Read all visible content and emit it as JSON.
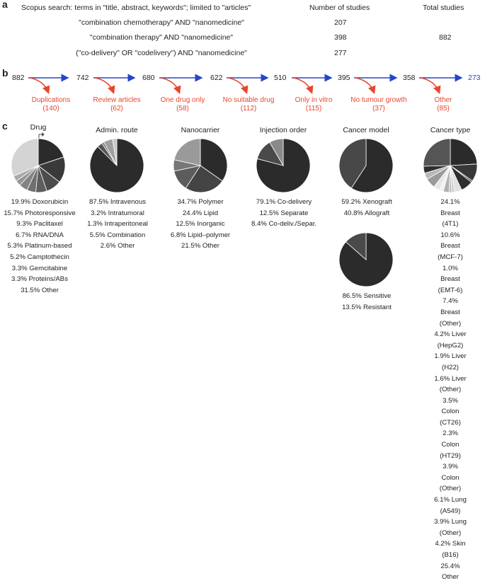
{
  "panel_a": {
    "letter": "a",
    "header_search": "Scopus search: terms in \"title, abstract, keywords\"; limited to \"articles\"",
    "header_count": "Number of studies",
    "header_total": "Total studies",
    "rows": [
      {
        "query": "\"combination chemotherapy\" AND \"nanomedicine\"",
        "count": "207"
      },
      {
        "query": "\"combination therapy\" AND \"nanomedicine\"",
        "count": "398"
      },
      {
        "query": "(\"co-delivery\" OR \"codelivery\") AND \"nanomedicine\"",
        "count": "277"
      }
    ],
    "total": "882"
  },
  "panel_b": {
    "letter": "b",
    "flow_numbers": [
      "882",
      "742",
      "680",
      "622",
      "510",
      "395",
      "358",
      "273"
    ],
    "exclusions": [
      {
        "reason": "Duplications",
        "count": "(140)"
      },
      {
        "reason": "Review articles",
        "count": "(62)"
      },
      {
        "reason": "One drug only",
        "count": "(58)"
      },
      {
        "reason": "No suitable drug",
        "count": "(112)"
      },
      {
        "reason": "Only in vitro",
        "count": "(115)"
      },
      {
        "reason": "No tumour growth",
        "count": "(37)"
      },
      {
        "reason": "Other",
        "count": "(85)"
      }
    ]
  },
  "panel_c": {
    "letter": "c"
  },
  "colors": {
    "red": "#e8452c",
    "blue": "#2446c8",
    "final_number": "#2446c8"
  },
  "chart_data": [
    {
      "type": "pie",
      "title": "Drug",
      "legend": [
        "19.9% Doxorubicin",
        "15.7% Photoresponsive",
        "9.3% Paclitaxel",
        "6.7% RNA/DNA",
        "5.3% Platinum-based",
        "5.2% Camptothecin",
        "3.3% Gemcitabine",
        "3.3% Proteins/ABs",
        "31.5% Other"
      ],
      "values": [
        19.9,
        15.7,
        9.3,
        6.7,
        5.3,
        5.2,
        3.3,
        3.3,
        31.5
      ],
      "colors": [
        "#2b2b2b",
        "#3a3a3a",
        "#4c4c4c",
        "#5e5e5e",
        "#707070",
        "#838383",
        "#969696",
        "#aaaaaa",
        "#d4d4d4"
      ]
    },
    {
      "type": "pie",
      "title": "Admin. route",
      "legend": [
        "87.5% Intravenous",
        "3.2% Intratumoral",
        "1.3% Intraperitoneal",
        "5.5% Combination",
        "2.6% Other"
      ],
      "values": [
        87.5,
        3.2,
        1.3,
        5.5,
        2.6
      ],
      "colors": [
        "#2b2b2b",
        "#555555",
        "#7a7a7a",
        "#a0a0a0",
        "#c8c8c8"
      ]
    },
    {
      "type": "pie",
      "title": "Nanocarrier",
      "legend": [
        "34.7% Polymer",
        "24.4% Lipid",
        "12.5% Inorganic",
        "6.8% Lipid–polymer",
        "21.5% Other"
      ],
      "values": [
        34.7,
        24.4,
        12.5,
        6.8,
        21.5
      ],
      "colors": [
        "#2b2b2b",
        "#444444",
        "#5c5c5c",
        "#777777",
        "#9a9a9a"
      ]
    },
    {
      "type": "pie",
      "title": "Injection order",
      "legend": [
        "79.1% Co-delivery",
        "12.5% Separate",
        "8.4% Co-deliv./Separ."
      ],
      "values": [
        79.1,
        12.5,
        8.4
      ],
      "colors": [
        "#2b2b2b",
        "#4a4a4a",
        "#8a8a8a"
      ]
    },
    {
      "type": "pie",
      "title": "Cancer model",
      "legend": [
        "59.2% Xenograft",
        "40.8% Allograft"
      ],
      "values": [
        59.2,
        40.8
      ],
      "colors": [
        "#2b2b2b",
        "#484848"
      ]
    },
    {
      "type": "pie",
      "title": "",
      "legend": [
        "86.5% Sensitive",
        "13.5% Resistant"
      ],
      "values": [
        86.5,
        13.5
      ],
      "colors": [
        "#2b2b2b",
        "#4a4a4a"
      ]
    },
    {
      "type": "pie",
      "title": "Cancer type",
      "legend": [
        "24.1% Breast (4T1)",
        "10.6% Breast (MCF-7)",
        "1.0% Breast (EMT-6)",
        "7.4% Breast (Other)",
        "4.2% Liver (HepG2)",
        "1.9% Liver (H22)",
        "1.6% Liver (Other)",
        "3.5% Colon (CT26)",
        "2.3% Colon (HT29)",
        "3.9% Colon (Other)",
        "6.1% Lung (A549)",
        "3.9% Lung (Other)",
        "4.2% Skin (B16)",
        "25.4% Other"
      ],
      "values": [
        24.1,
        10.6,
        1.0,
        7.4,
        4.2,
        1.9,
        1.6,
        3.5,
        2.3,
        3.9,
        6.1,
        3.9,
        4.2,
        25.4
      ],
      "colors": [
        "#2b2b2b",
        "#383838",
        "#454545",
        "#2f2f2f",
        "#e0e0e0",
        "#d0d0d0",
        "#c0c0c0",
        "#b0b0b0",
        "#f0f0f0",
        "#e6e6e6",
        "#9a9a9a",
        "#b8b8b8",
        "#2e2e2e",
        "#555555"
      ]
    }
  ]
}
